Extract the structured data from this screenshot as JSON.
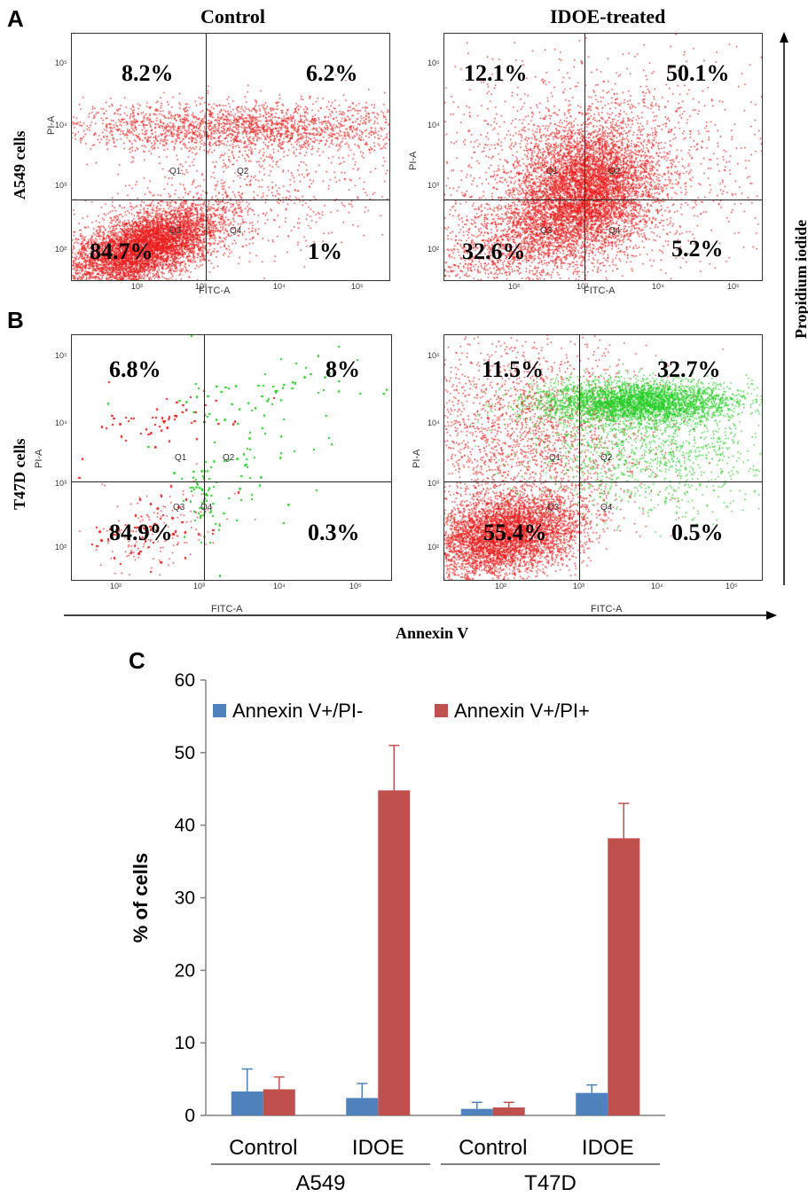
{
  "panels": {
    "a_letter": "A",
    "b_letter": "B",
    "c_letter": "C"
  },
  "columns": {
    "control": "Control",
    "treated": "IDOE-treated"
  },
  "rows": {
    "a549": "A549 cells",
    "t47d": "T47D cells"
  },
  "axes": {
    "x_title": "Annexin V",
    "y_title": "Propidium  iodide",
    "flow_x": "FITC-A",
    "flow_y": "PI-A"
  },
  "quadrants": [
    "Q1",
    "Q2",
    "Q3",
    "Q4"
  ],
  "flow_ticks": {
    "x": [
      "10²",
      "10³",
      "10⁴",
      "10⁵"
    ],
    "y": [
      "10²",
      "10³",
      "10⁴",
      "10⁵"
    ]
  },
  "flow_plots": [
    {
      "id": "a549_control",
      "q1": "8.2%",
      "q2": "6.2%",
      "q3": "84.7%",
      "q4": "1%",
      "apoptotic_color": "#e81c1c"
    },
    {
      "id": "a549_idoe",
      "q1": "12.1%",
      "q2": "50.1%",
      "q3": "32.6%",
      "q4": "5.2%",
      "apoptotic_color": "#e81c1c"
    },
    {
      "id": "t47d_control",
      "q1": "6.8%",
      "q2": "8%",
      "q3": "84.9%",
      "q4": "0.3%",
      "apoptotic_color": "#22cc22"
    },
    {
      "id": "t47d_idoe",
      "q1": "11.5%",
      "q2": "32.7%",
      "q3": "55.4%",
      "q4": "0.5%",
      "apoptotic_color": "#22cc22"
    }
  ],
  "colors": {
    "necrotic_red": "#e81c1c",
    "apoptotic_green": "#22cc22",
    "bar_blue": "#4f81bd",
    "bar_red": "#c0504d"
  },
  "chart_data": {
    "type": "bar",
    "ylabel": "% of cells",
    "ylim": [
      0,
      60
    ],
    "yticks": [
      0,
      10,
      20,
      30,
      40,
      50,
      60
    ],
    "categories": [
      "Control",
      "IDOE",
      "Control",
      "IDOE"
    ],
    "groups": [
      {
        "label": "A549",
        "categories": [
          0,
          1
        ]
      },
      {
        "label": "T47D",
        "categories": [
          2,
          3
        ]
      }
    ],
    "series": [
      {
        "name": "Annexin V+/PI-",
        "color": "#4f81bd",
        "values": [
          3.3,
          2.4,
          0.9,
          3.1
        ],
        "errors": [
          3.1,
          2.0,
          0.9,
          1.1
        ]
      },
      {
        "name": "Annexin V+/PI+",
        "color": "#c0504d",
        "values": [
          3.6,
          44.8,
          1.1,
          38.2
        ],
        "errors": [
          1.7,
          6.2,
          0.7,
          4.8
        ]
      }
    ],
    "legend_position": "top"
  }
}
